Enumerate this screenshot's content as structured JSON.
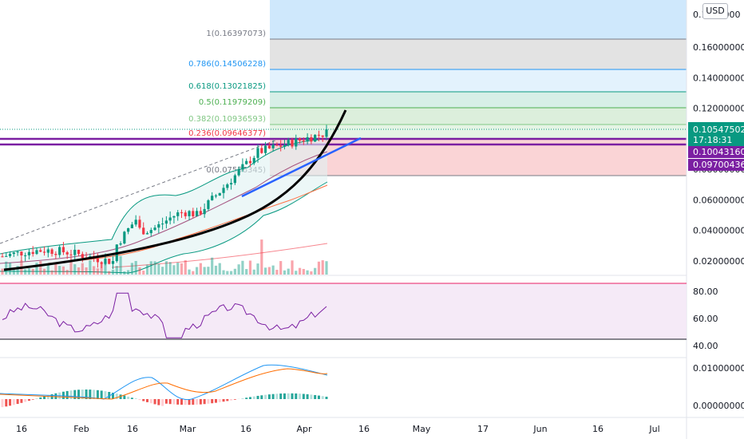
{
  "currency_button": "USD",
  "chart_data": {
    "type": "candlestick",
    "main_axis": {
      "ylim": [
        0.01,
        0.17
      ],
      "ticks": [
        "0.02000000",
        "0.04000000",
        "0.06000000",
        "0.08000000",
        "0.10000000",
        "0.12000000",
        "0.14000000",
        "0.16000000",
        "0.1800000"
      ]
    },
    "x_ticks": [
      "16",
      "Feb",
      "16",
      "Mar",
      "16",
      "Apr",
      "16",
      "May",
      "17",
      "Jun",
      "16",
      "Jul"
    ],
    "price_tags": {
      "last": "0.10547502",
      "countdown": "17:18:31",
      "level_1": "0.10043160",
      "level_2": "0.09700436"
    },
    "fib_levels": [
      {
        "label": "1(0.16397073)",
        "value": 0.16397073,
        "color": "#787b86"
      },
      {
        "label": "0.786(0.14506228)",
        "value": 0.14506228,
        "color": "#2196f3"
      },
      {
        "label": "0.618(0.13021825)",
        "value": 0.13021825,
        "color": "#089981"
      },
      {
        "label": "0.5(0.11979209)",
        "value": 0.11979209,
        "color": "#4caf50"
      },
      {
        "label": "0.382(0.10936593)",
        "value": 0.10936593,
        "color": "#81c784"
      },
      {
        "label": "0.236(0.09646377)",
        "value": 0.09646377,
        "color": "#f23645"
      },
      {
        "label": "0(0.07556345)",
        "value": 0.07556345,
        "color": "#787b86"
      }
    ],
    "horizontal_lines": [
      0.0995,
      0.0975
    ],
    "rsi": {
      "ticks": [
        "80.00",
        "60.00",
        "40.00"
      ],
      "ylim": [
        40,
        85
      ],
      "upper": 85,
      "lower": 45
    },
    "macd": {
      "ticks": [
        "0.01000000",
        "0.00000000"
      ],
      "ylim": [
        -0.003,
        0.012
      ]
    },
    "colors": {
      "up": "#089981",
      "down": "#f23645",
      "fib_bg": "#2962ff",
      "purple": "#7b1fa2",
      "accent": "#2962ff"
    }
  }
}
